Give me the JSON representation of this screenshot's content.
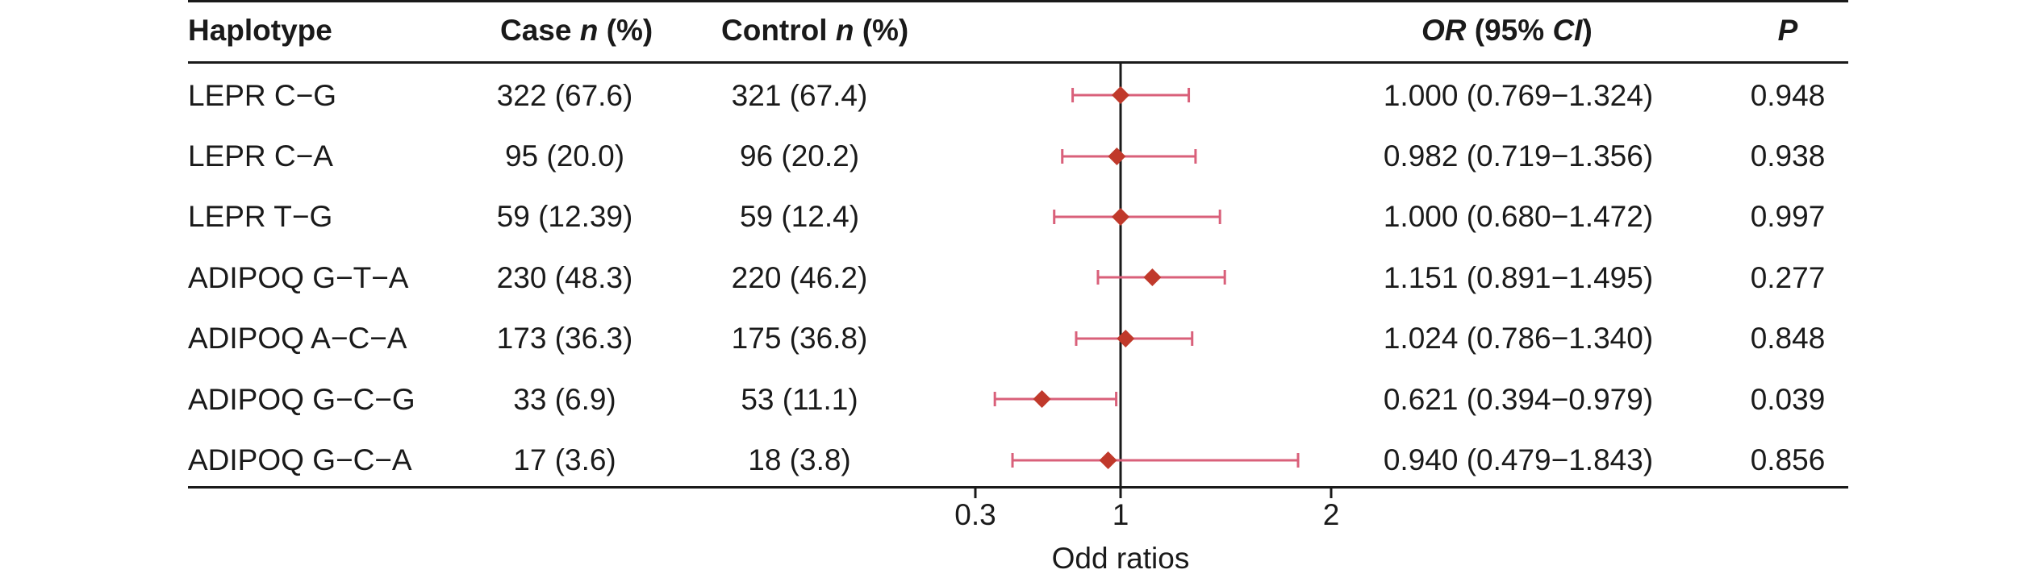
{
  "table": {
    "headers": {
      "haplotype": "Haplotype",
      "case_prefix": "Case ",
      "case_italic": "n",
      "case_suffix": " (%)",
      "control_prefix": "Control ",
      "control_italic": "n",
      "control_suffix": " (%)",
      "or_italic": "OR",
      "or_mid": " (95% ",
      "or_ci_italic": "CI",
      "or_suffix": ")",
      "p": "P"
    },
    "rows": [
      {
        "haplotype": "LEPR C−G",
        "case": "322 (67.6)",
        "control": "321 (67.4)",
        "or_ci": "1.000 (0.769−1.324)",
        "p": "0.948"
      },
      {
        "haplotype": "LEPR C−A",
        "case": "95 (20.0)",
        "control": "96 (20.2)",
        "or_ci": "0.982 (0.719−1.356)",
        "p": "0.938"
      },
      {
        "haplotype": "LEPR T−G",
        "case": "59 (12.39)",
        "control": "59 (12.4)",
        "or_ci": "1.000 (0.680−1.472)",
        "p": "0.997"
      },
      {
        "haplotype": "ADIPOQ G−T−A",
        "case": "230 (48.3)",
        "control": "220 (46.2)",
        "or_ci": "1.151 (0.891−1.495)",
        "p": "0.277"
      },
      {
        "haplotype": "ADIPOQ A−C−A",
        "case": "173 (36.3)",
        "control": "175 (36.8)",
        "or_ci": "1.024 (0.786−1.340)",
        "p": "0.848"
      },
      {
        "haplotype": "ADIPOQ G−C−G",
        "case": "33 (6.9)",
        "control": "53 (11.1)",
        "or_ci": "0.621 (0.394−0.979)",
        "p": "0.039"
      },
      {
        "haplotype": "ADIPOQ G−C−A",
        "case": "17 (3.6)",
        "control": "18 (3.8)",
        "or_ci": "0.940 (0.479−1.843)",
        "p": "0.856"
      }
    ]
  },
  "chart_data": {
    "type": "scatter",
    "subtype": "forest_plot",
    "xlabel": "Odd ratios",
    "x_ticks": [
      0.3,
      1,
      2
    ],
    "x_tick_labels": [
      "0.3",
      "1",
      "2"
    ],
    "reference_line": 1,
    "marker": "diamond",
    "grid": false,
    "colors": {
      "point": "#c0392b",
      "ci": "#d9607a",
      "axis": "#1a1a1a"
    },
    "categories": [
      "LEPR C−G",
      "LEPR C−A",
      "LEPR T−G",
      "ADIPOQ G−T−A",
      "ADIPOQ A−C−A",
      "ADIPOQ G−C−G",
      "ADIPOQ G−C−A"
    ],
    "points": [
      {
        "or": 1.0,
        "lo": 0.769,
        "hi": 1.324
      },
      {
        "or": 0.982,
        "lo": 0.719,
        "hi": 1.356
      },
      {
        "or": 1.0,
        "lo": 0.68,
        "hi": 1.472
      },
      {
        "or": 1.151,
        "lo": 0.891,
        "hi": 1.495
      },
      {
        "or": 1.024,
        "lo": 0.786,
        "hi": 1.34
      },
      {
        "or": 0.621,
        "lo": 0.394,
        "hi": 0.979
      },
      {
        "or": 0.94,
        "lo": 0.479,
        "hi": 1.843
      }
    ]
  }
}
